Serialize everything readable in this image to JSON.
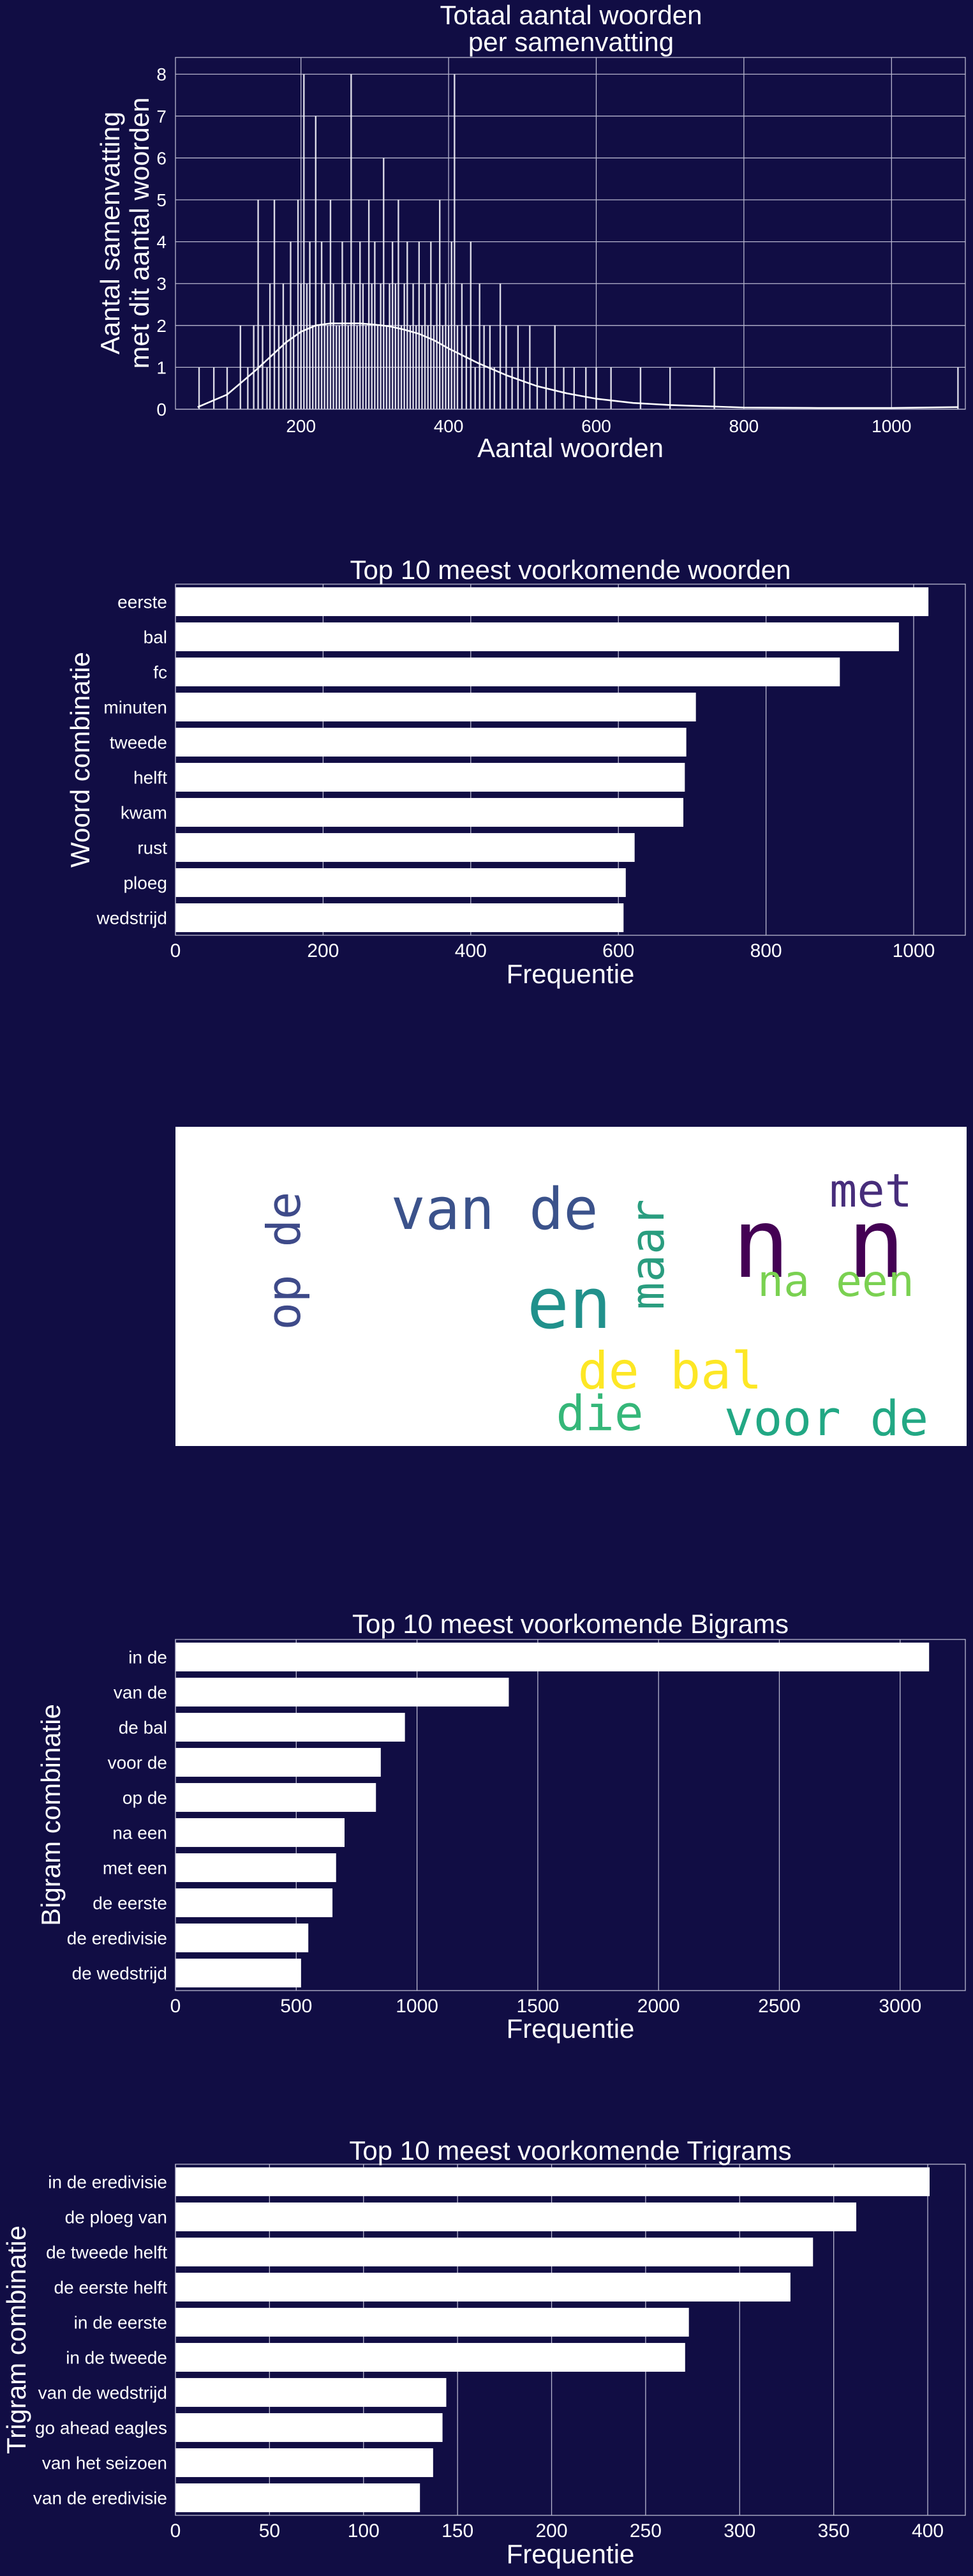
{
  "chart_data": [
    {
      "type": "histogram",
      "title": "Totaal aantal woorden\nper samenvatting",
      "xlabel": "Aantal woorden",
      "ylabel": "Aantal samenvatting\nmet dit aantal woorden",
      "xlim": [
        30,
        1100
      ],
      "ylim": [
        0,
        8.4
      ],
      "xticks": [
        200,
        400,
        600,
        800,
        1000
      ],
      "yticks": [
        0,
        1,
        2,
        3,
        4,
        5,
        6,
        7,
        8
      ],
      "grid": true,
      "kde": {
        "x": [
          60,
          100,
          140,
          180,
          200,
          220,
          240,
          260,
          280,
          300,
          320,
          340,
          360,
          380,
          400,
          440,
          480,
          520,
          560,
          600,
          650,
          700,
          750,
          800,
          900,
          1000,
          1090
        ],
        "y": [
          0.05,
          0.35,
          0.95,
          1.6,
          1.85,
          2.0,
          2.05,
          2.05,
          2.05,
          2.02,
          1.98,
          1.9,
          1.8,
          1.65,
          1.45,
          1.1,
          0.8,
          0.55,
          0.38,
          0.25,
          0.15,
          0.1,
          0.07,
          0.04,
          0.03,
          0.03,
          0.05
        ]
      },
      "bars": {
        "x": [
          62,
          82,
          100,
          118,
          128,
          136,
          142,
          148,
          154,
          158,
          164,
          170,
          176,
          180,
          186,
          190,
          196,
          200,
          204,
          208,
          212,
          216,
          220,
          224,
          228,
          232,
          236,
          240,
          244,
          248,
          252,
          256,
          260,
          264,
          268,
          272,
          276,
          280,
          284,
          288,
          292,
          296,
          300,
          304,
          308,
          312,
          316,
          320,
          324,
          328,
          332,
          336,
          340,
          344,
          348,
          352,
          356,
          360,
          364,
          368,
          372,
          376,
          380,
          384,
          388,
          392,
          396,
          400,
          404,
          408,
          412,
          418,
          424,
          430,
          436,
          442,
          448,
          456,
          462,
          470,
          478,
          486,
          494,
          502,
          510,
          520,
          532,
          544,
          556,
          570,
          586,
          600,
          620,
          660,
          700,
          760,
          1090
        ],
        "y": [
          1,
          1,
          1,
          2,
          1,
          2,
          5,
          2,
          1,
          3,
          5,
          2,
          3,
          2,
          4,
          2,
          5,
          3,
          8,
          3,
          4,
          2,
          7,
          2,
          4,
          3,
          2,
          5,
          3,
          2,
          2,
          4,
          3,
          2,
          8,
          3,
          2,
          4,
          3,
          2,
          5,
          3,
          4,
          2,
          3,
          6,
          2,
          3,
          4,
          3,
          5,
          2,
          3,
          4,
          2,
          3,
          2,
          4,
          2,
          3,
          2,
          4,
          2,
          3,
          5,
          2,
          3,
          2,
          4,
          8,
          2,
          3,
          2,
          4,
          1,
          3,
          2,
          2,
          1,
          3,
          2,
          1,
          2,
          1,
          2,
          1,
          1,
          2,
          1,
          1,
          1,
          1,
          1,
          1,
          1,
          1,
          1
        ]
      }
    },
    {
      "type": "bar",
      "orientation": "horizontal",
      "title": "Top 10 meest voorkomende woorden",
      "xlabel": "Frequentie",
      "ylabel": "Woord combinatie",
      "categories": [
        "eerste",
        "bal",
        "fc",
        "minuten",
        "tweede",
        "helft",
        "kwam",
        "rust",
        "ploeg",
        "wedstrijd"
      ],
      "values": [
        1020,
        980,
        900,
        705,
        692,
        690,
        688,
        622,
        610,
        607
      ],
      "xlim": [
        0,
        1070
      ],
      "xticks": [
        0,
        200,
        400,
        600,
        800,
        1000
      ]
    },
    {
      "type": "wordcloud",
      "words": [
        {
          "text": "n n",
          "color": "#440154"
        },
        {
          "text": "van de",
          "color": "#3b528b"
        },
        {
          "text": "en",
          "color": "#21918c"
        },
        {
          "text": "op de",
          "color": "#3e4a89"
        },
        {
          "text": "maar",
          "color": "#2a9d7f"
        },
        {
          "text": "met",
          "color": "#472d7b"
        },
        {
          "text": "na een",
          "color": "#7ad151"
        },
        {
          "text": "de bal",
          "color": "#fde725"
        },
        {
          "text": "die",
          "color": "#35b779"
        },
        {
          "text": "voor de",
          "color": "#22a884"
        }
      ]
    },
    {
      "type": "bar",
      "orientation": "horizontal",
      "title": "Top 10 meest voorkomende Bigrams",
      "xlabel": "Frequentie",
      "ylabel": "Bigram combinatie",
      "categories": [
        "in de",
        "van de",
        "de bal",
        "voor de",
        "op de",
        "na een",
        "met een",
        "de eerste",
        "de eredivisie",
        "de wedstrijd"
      ],
      "values": [
        3120,
        1380,
        950,
        850,
        830,
        700,
        665,
        650,
        550,
        520
      ],
      "xlim": [
        0,
        3270
      ],
      "xticks": [
        0,
        500,
        1000,
        1500,
        2000,
        2500,
        3000
      ]
    },
    {
      "type": "bar",
      "orientation": "horizontal",
      "title": "Top 10 meest voorkomende Trigrams",
      "xlabel": "Frequentie",
      "ylabel": "Trigram combinatie",
      "categories": [
        "in de eredivisie",
        "de ploeg van",
        "de tweede helft",
        "de eerste helft",
        "in de eerste",
        "in de tweede",
        "van de wedstrijd",
        "go ahead eagles",
        "van het seizoen",
        "van de eredivisie"
      ],
      "values": [
        401,
        362,
        339,
        327,
        273,
        271,
        144,
        142,
        137,
        130
      ],
      "xlim": [
        0,
        420
      ],
      "xticks": [
        0,
        50,
        100,
        150,
        200,
        250,
        300,
        350,
        400
      ]
    }
  ],
  "style": {
    "background": "#110d44",
    "bar_color": "#ffffff",
    "grid_color": "#b9b8cf"
  }
}
